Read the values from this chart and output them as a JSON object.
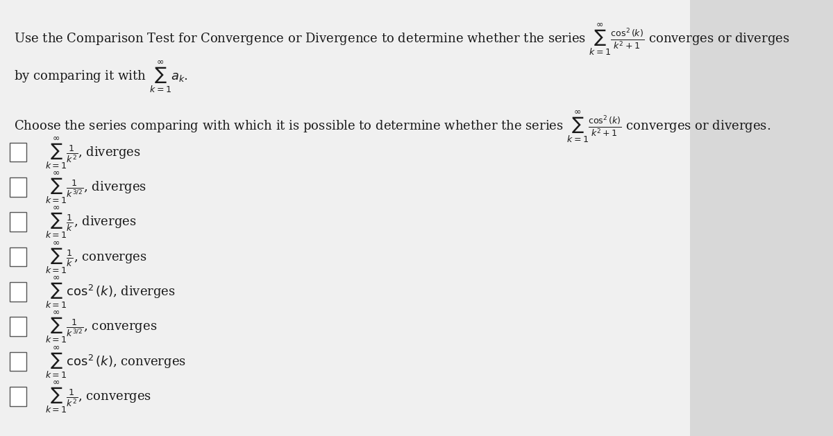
{
  "background_color": "#d8d8d8",
  "content_bg": "#f0f0f0",
  "title_line1": "Use the Comparison Test for Convergence or Divergence to determine whether the series $\\sum_{k=1}^{\\infty} \\frac{\\cos^2(k)}{k^2+1}$ converges or diverges",
  "title_line2": "by comparing it with $\\sum_{k=1}^{\\infty} a_k$.",
  "question": "Choose the series comparing with which it is possible to determine whether the series $\\sum_{k=1}^{\\infty} \\frac{\\cos^2(k)}{k^2+1}$ converges or diverges.",
  "options": [
    "$\\sum_{k=1}^{\\infty} \\frac{1}{k^2}$, diverges",
    "$\\sum_{k=1}^{\\infty} \\frac{1}{k^{3/2}}$, diverges",
    "$\\sum_{k=1}^{\\infty} \\frac{1}{k}$, diverges",
    "$\\sum_{k=1}^{\\infty} \\frac{1}{k}$, converges",
    "$\\sum_{k=1}^{\\infty} \\cos^2(k)$, diverges",
    "$\\sum_{k=1}^{\\infty} \\frac{1}{k^{3/2}}$, converges",
    "$\\sum_{k=1}^{\\infty} \\cos^2(k)$, converges",
    "$\\sum_{k=1}^{\\infty} \\frac{1}{k^2}$, converges"
  ],
  "text_color": "#1a1a1a",
  "font_size_title": 13,
  "font_size_question": 13,
  "font_size_options": 13
}
